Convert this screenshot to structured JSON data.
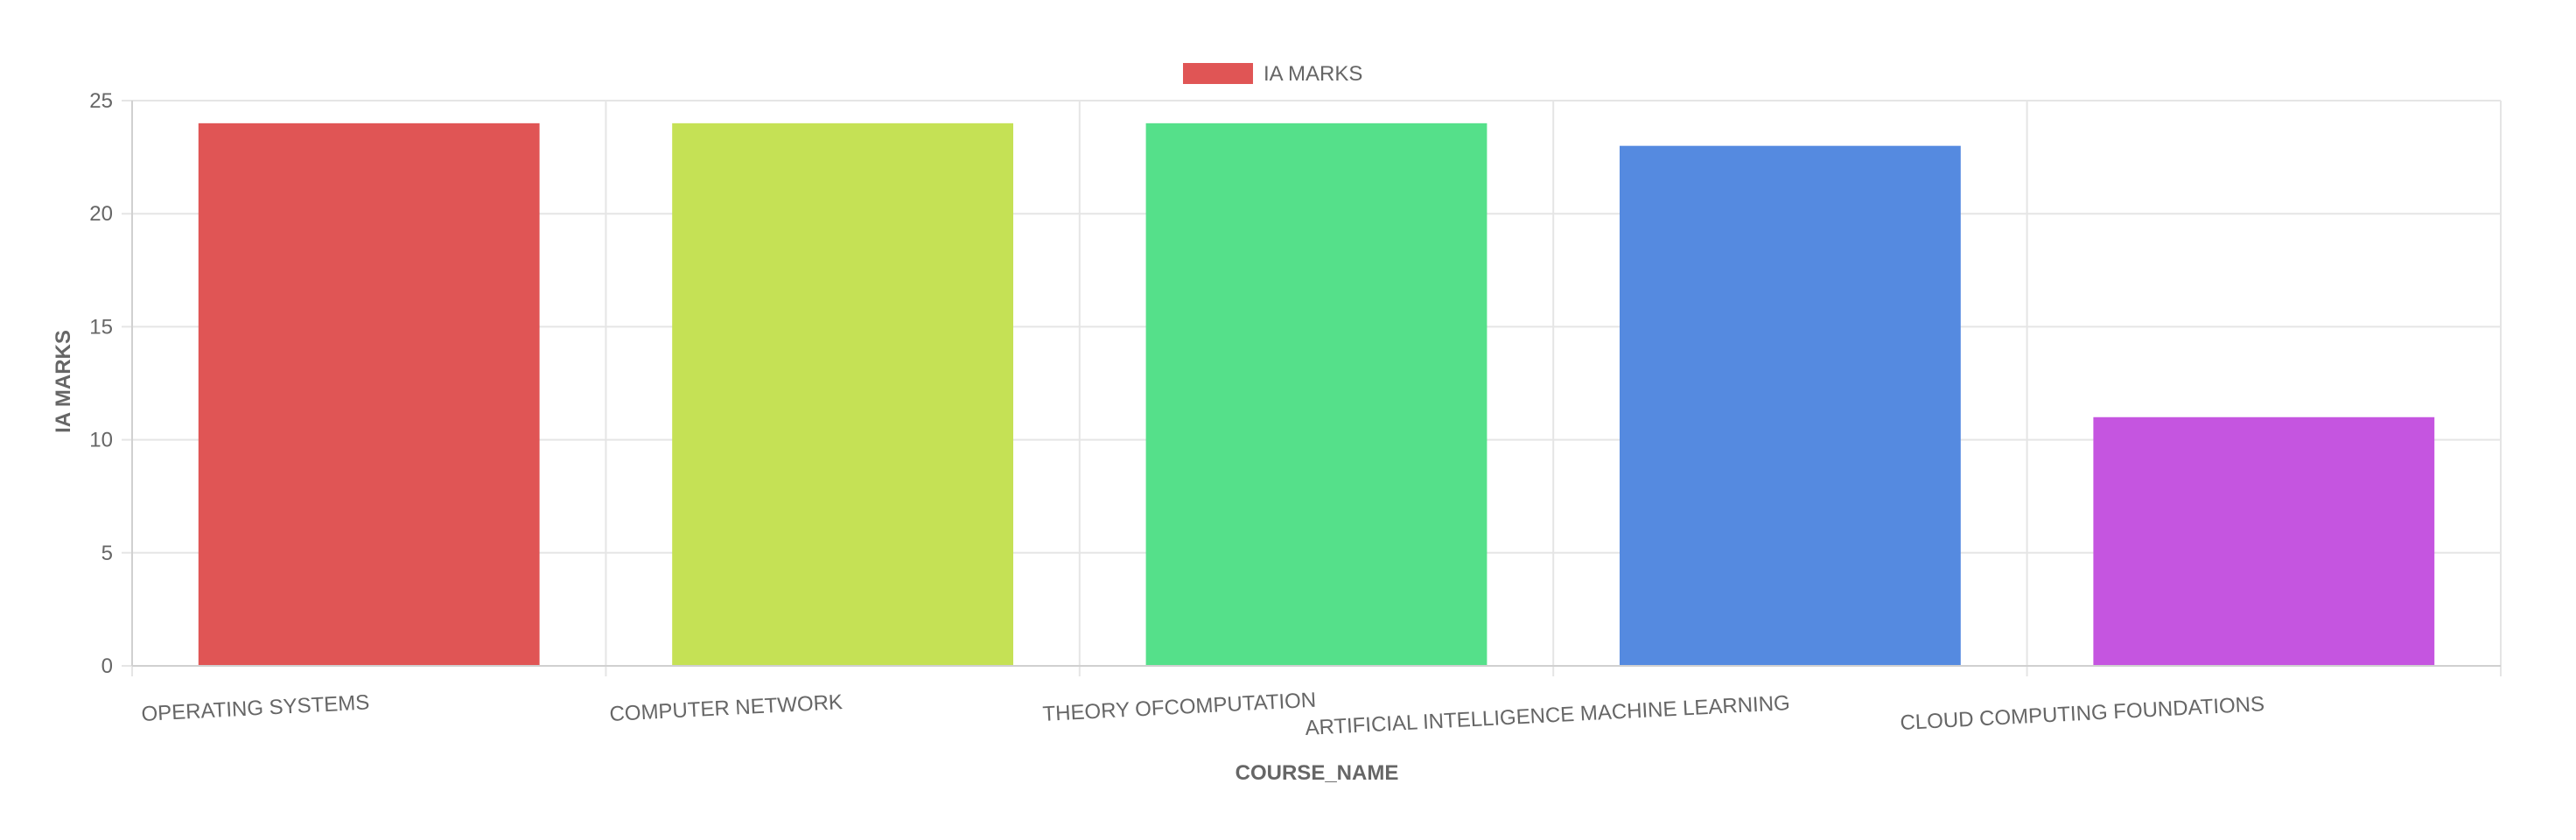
{
  "chart_data": {
    "type": "bar",
    "categories": [
      "OPERATING SYSTEMS",
      "COMPUTER NETWORK",
      "THEORY OFCOMPUTATION",
      "ARTIFICIAL INTELLIGENCE MACHINE LEARNING",
      "CLOUD COMPUTING FOUNDATIONS"
    ],
    "series": [
      {
        "name": "IA MARKS",
        "values": [
          24,
          24,
          24,
          23,
          11
        ],
        "colors": [
          "#e05555",
          "#c5e155",
          "#55e08a",
          "#558ae0",
          "#c555e0"
        ]
      }
    ],
    "legend": {
      "label": "IA MARKS",
      "color": "#e05555",
      "position": "top-center"
    },
    "xlabel": "COURSE_NAME",
    "ylabel": "IA MARKS",
    "ylim": [
      0,
      25
    ],
    "yticks": [
      "0",
      "5",
      "10",
      "15",
      "20",
      "25"
    ],
    "grid": true
  }
}
